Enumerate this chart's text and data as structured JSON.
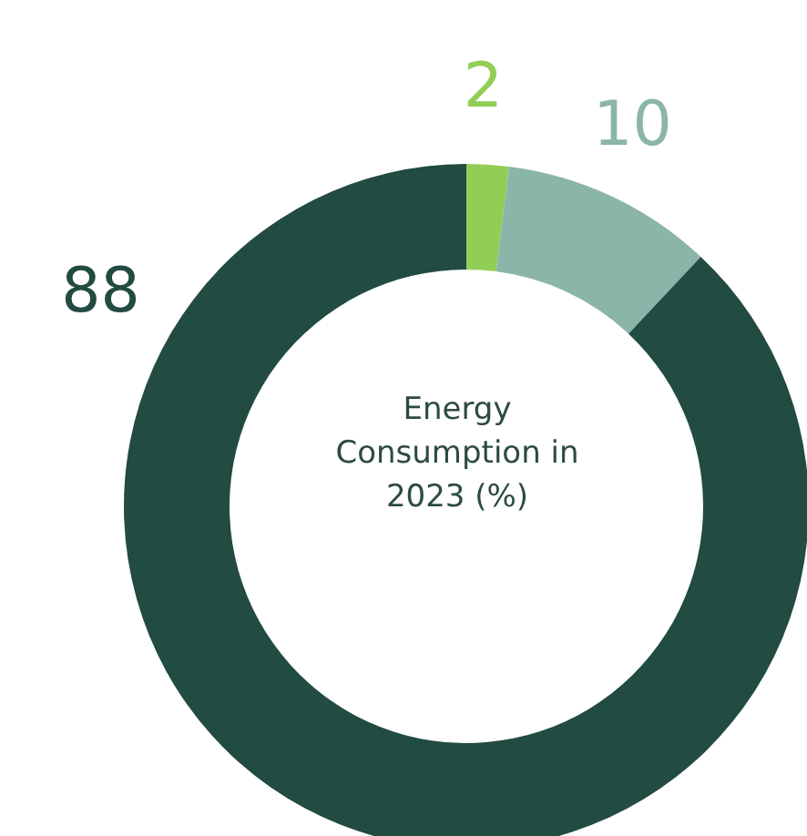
{
  "chart_data": {
    "type": "donut",
    "title": "Energy Consumption in 2023 (%)",
    "categories": [
      null,
      null,
      null
    ],
    "values": [
      2,
      10,
      88
    ],
    "colors": [
      "#92cd55",
      "#8bb5a9",
      "#224b42"
    ],
    "data_labels": true,
    "legend": false
  }
}
